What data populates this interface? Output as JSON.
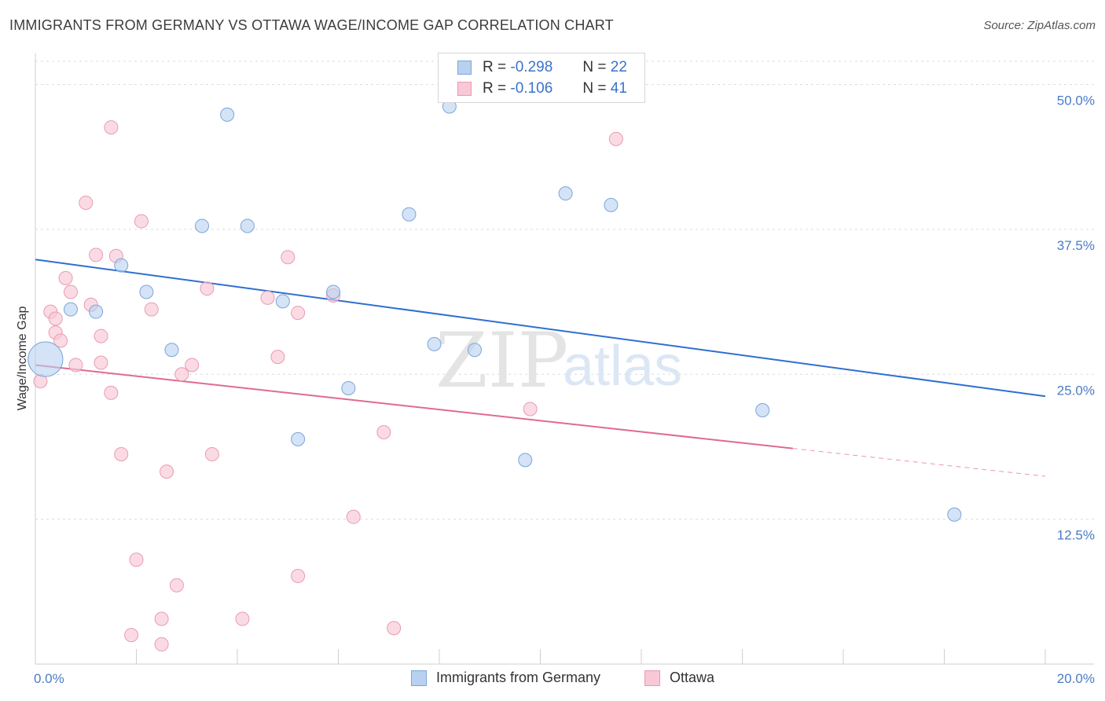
{
  "title": "IMMIGRANTS FROM GERMANY VS OTTAWA WAGE/INCOME GAP CORRELATION CHART",
  "source": "Source: ZipAtlas.com",
  "watermark": {
    "zip": "ZIP",
    "atlas": "atlas"
  },
  "legend": {
    "r_label": "R =",
    "n_label": "N =",
    "series1": {
      "r": "-0.298",
      "n": "22"
    },
    "series2": {
      "r": "-0.106",
      "n": "41"
    }
  },
  "colors": {
    "series1_fill": "#b8d1f0",
    "series1_stroke": "#7aa6dc",
    "series1_line": "#2f6fcf",
    "series2_fill": "#f8c8d6",
    "series2_stroke": "#eb9ab4",
    "series2_line": "#e06a93"
  },
  "chart_data": {
    "type": "scatter",
    "xlabel": "",
    "ylabel": "Wage/Income Gap",
    "xlim": [
      0,
      20
    ],
    "ylim": [
      0,
      52
    ],
    "x_ticks": [
      "0.0%",
      "20.0%"
    ],
    "y_ticks": [
      {
        "value": 50.0,
        "label": "50.0%"
      },
      {
        "value": 37.5,
        "label": "37.5%"
      },
      {
        "value": 25.0,
        "label": "25.0%"
      },
      {
        "value": 12.5,
        "label": "12.5%"
      }
    ],
    "grid": true,
    "legend_position": "top-center",
    "series": [
      {
        "name": "Immigrants from Germany",
        "points": [
          [
            0.2,
            26.3,
            2.6
          ],
          [
            0.7,
            30.6,
            1
          ],
          [
            1.2,
            30.4,
            1
          ],
          [
            1.7,
            34.4,
            1
          ],
          [
            2.2,
            32.1,
            1
          ],
          [
            2.7,
            27.1,
            1
          ],
          [
            3.3,
            37.8,
            1
          ],
          [
            3.8,
            47.4,
            1
          ],
          [
            4.2,
            37.8,
            1
          ],
          [
            4.9,
            31.3,
            1
          ],
          [
            5.2,
            19.4,
            1
          ],
          [
            5.9,
            32.1,
            1
          ],
          [
            6.2,
            23.8,
            1
          ],
          [
            7.4,
            38.8,
            1
          ],
          [
            7.9,
            27.6,
            1
          ],
          [
            8.2,
            48.1,
            1
          ],
          [
            8.7,
            27.1,
            1
          ],
          [
            9.7,
            17.6,
            1
          ],
          [
            10.5,
            40.6,
            1
          ],
          [
            11.4,
            39.6,
            1
          ],
          [
            14.4,
            21.9,
            1
          ],
          [
            18.2,
            12.9,
            1
          ]
        ],
        "trend": {
          "x0": 0,
          "y0": 34.9,
          "x1": 20,
          "y1": 23.1
        }
      },
      {
        "name": "Ottawa",
        "points": [
          [
            0.1,
            24.4
          ],
          [
            0.3,
            30.4
          ],
          [
            0.4,
            28.6
          ],
          [
            0.4,
            29.8
          ],
          [
            0.5,
            27.9
          ],
          [
            0.6,
            33.3
          ],
          [
            0.7,
            32.1
          ],
          [
            0.8,
            25.8
          ],
          [
            1.0,
            39.8
          ],
          [
            1.1,
            31.0
          ],
          [
            1.2,
            35.3
          ],
          [
            1.3,
            28.3
          ],
          [
            1.3,
            26.0
          ],
          [
            1.5,
            23.4
          ],
          [
            1.5,
            46.3
          ],
          [
            1.6,
            35.2
          ],
          [
            1.7,
            18.1
          ],
          [
            1.9,
            2.5
          ],
          [
            2.0,
            9.0
          ],
          [
            2.1,
            38.2
          ],
          [
            2.3,
            30.6
          ],
          [
            2.5,
            1.7
          ],
          [
            2.5,
            3.9
          ],
          [
            2.6,
            16.6
          ],
          [
            2.8,
            6.8
          ],
          [
            2.9,
            25.0
          ],
          [
            3.1,
            25.8
          ],
          [
            3.4,
            32.4
          ],
          [
            3.5,
            18.1
          ],
          [
            4.1,
            3.9
          ],
          [
            4.6,
            31.6
          ],
          [
            4.8,
            26.5
          ],
          [
            5.0,
            35.1
          ],
          [
            5.2,
            30.3
          ],
          [
            5.2,
            7.6
          ],
          [
            5.9,
            31.8
          ],
          [
            6.3,
            12.7
          ],
          [
            6.9,
            20.0
          ],
          [
            7.1,
            3.1
          ],
          [
            9.8,
            22.0
          ],
          [
            11.5,
            45.3
          ]
        ],
        "trend": {
          "x0": 0,
          "y0": 25.8,
          "x1": 15,
          "y1": 18.6
        },
        "trend_extension": {
          "x0": 15,
          "y0": 18.6,
          "x1": 20,
          "y1": 16.2
        }
      }
    ]
  }
}
